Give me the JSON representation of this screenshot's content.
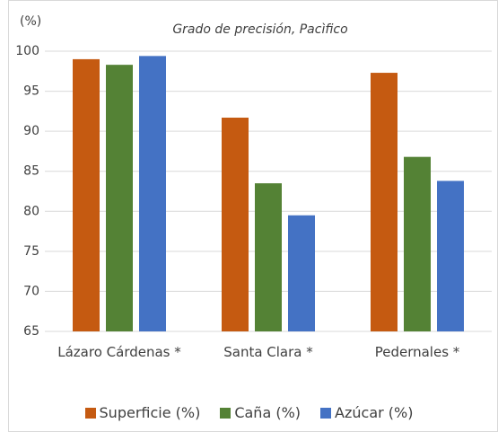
{
  "chart_data": {
    "type": "bar",
    "title": "Grado de precisión, Pacìfico",
    "y_label": "(%)",
    "categories": [
      "Lázaro Cárdenas *",
      "Santa Clara *",
      "Pedernales *"
    ],
    "series": [
      {
        "name": "Superficie (%)",
        "color": "#c55a11",
        "values": [
          99.0,
          91.7,
          97.3
        ]
      },
      {
        "name": "Caña (%)",
        "color": "#548235",
        "values": [
          98.3,
          83.5,
          86.8
        ]
      },
      {
        "name": "Azúcar (%)",
        "color": "#4472c4",
        "values": [
          99.4,
          79.5,
          83.8
        ]
      }
    ],
    "ylim": [
      65,
      100
    ],
    "yticks": [
      65,
      70,
      75,
      80,
      85,
      90,
      95,
      100
    ],
    "grid": true,
    "legend": "bottom"
  }
}
